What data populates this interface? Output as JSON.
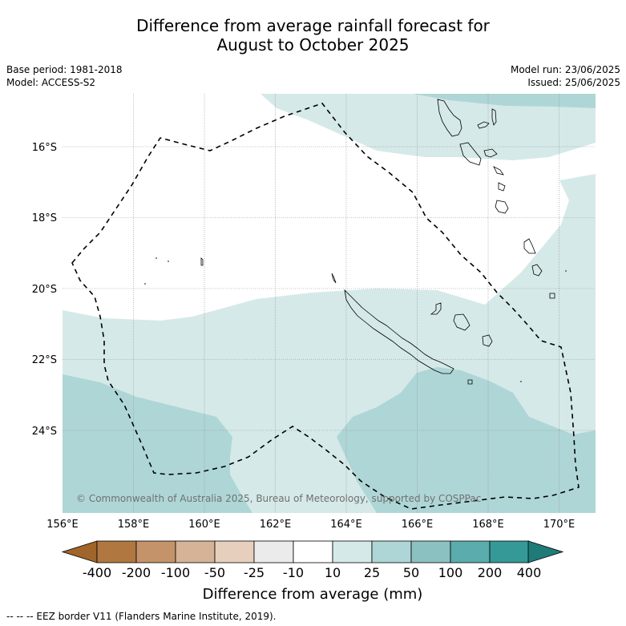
{
  "title_line1": "Difference from average rainfall forecast for",
  "title_line2": "August to October 2025",
  "meta": {
    "base_period": "Base period: 1981-2018",
    "model": "Model: ACCESS-S2",
    "model_run": "Model run: 23/06/2025",
    "issued": "Issued: 25/06/2025"
  },
  "map": {
    "lon_labels": [
      "156°E",
      "158°E",
      "160°E",
      "162°E",
      "164°E",
      "166°E",
      "168°E",
      "170°E"
    ],
    "lat_labels": [
      "16°S",
      "18°S",
      "20°S",
      "22°S",
      "24°S"
    ],
    "copyright": "© Commonwealth of Australia 2025, Bureau of Meteorology, supported by COSPPac"
  },
  "colorbar": {
    "labels": [
      "-400",
      "-200",
      "-100",
      "-50",
      "-25",
      "-10",
      "10",
      "25",
      "50",
      "100",
      "200",
      "400"
    ],
    "colors": [
      "#a0652a",
      "#b07840",
      "#c4936a",
      "#d6b396",
      "#e6d0bd",
      "#ebebeb",
      "#ffffff",
      "#d5e9e8",
      "#afd6d6",
      "#8bc1c0",
      "#5aadac",
      "#359997",
      "#1f7b78"
    ],
    "title": "Difference from average (mm)"
  },
  "footer": "--  --  -- EEZ border V11 (Flanders Marine Institute, 2019)."
}
